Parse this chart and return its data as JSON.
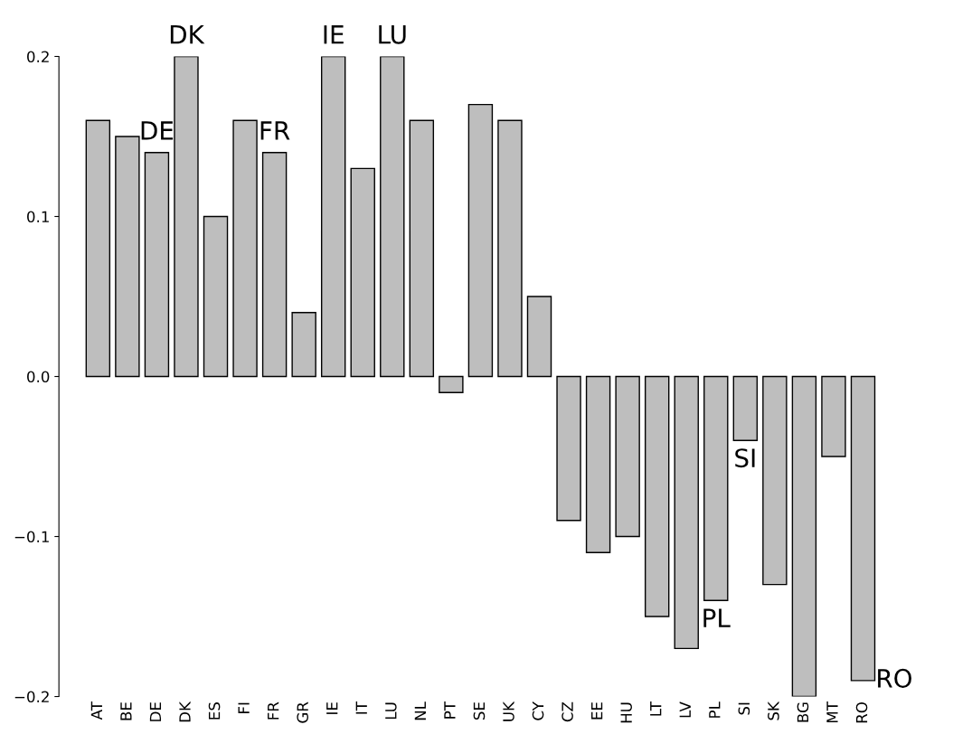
{
  "chart_data": {
    "type": "bar",
    "categories": [
      "AT",
      "BE",
      "DE",
      "DK",
      "ES",
      "FI",
      "FR",
      "GR",
      "IE",
      "IT",
      "LU",
      "NL",
      "PT",
      "SE",
      "UK",
      "CY",
      "CZ",
      "EE",
      "HU",
      "LT",
      "LV",
      "PL",
      "SI",
      "SK",
      "BG",
      "MT",
      "RO"
    ],
    "values": [
      0.16,
      0.15,
      0.14,
      0.2,
      0.1,
      0.16,
      0.14,
      0.04,
      0.2,
      0.13,
      0.2,
      0.16,
      -0.01,
      0.17,
      0.16,
      0.05,
      -0.09,
      -0.11,
      -0.1,
      -0.15,
      -0.17,
      -0.14,
      -0.04,
      -0.13,
      -0.2,
      -0.05,
      -0.19
    ],
    "color": "#bebebe",
    "ylim": [
      -0.2,
      0.2
    ],
    "yticks": [
      {
        "value": -0.2,
        "label": "−0.2"
      },
      {
        "value": -0.1,
        "label": "−0.1"
      },
      {
        "value": 0.0,
        "label": "0.0"
      },
      {
        "value": 0.1,
        "label": "0.1"
      },
      {
        "value": 0.2,
        "label": "0.2"
      }
    ],
    "grid": false,
    "legend": false,
    "annotations": [
      {
        "text": "DE",
        "x": "DE",
        "y": 0.14
      },
      {
        "text": "DK",
        "x": "DK",
        "y": 0.2
      },
      {
        "text": "FR",
        "x": "FR",
        "y": 0.14
      },
      {
        "text": "IE",
        "x": "IE",
        "y": 0.2
      },
      {
        "text": "LU",
        "x": "LU",
        "y": 0.2
      },
      {
        "text": "SI",
        "x": "SI",
        "y": -0.04
      },
      {
        "text": "PL",
        "x": "PL",
        "y": -0.14
      },
      {
        "text": "RO",
        "x": "RO",
        "y": -0.19
      }
    ]
  }
}
